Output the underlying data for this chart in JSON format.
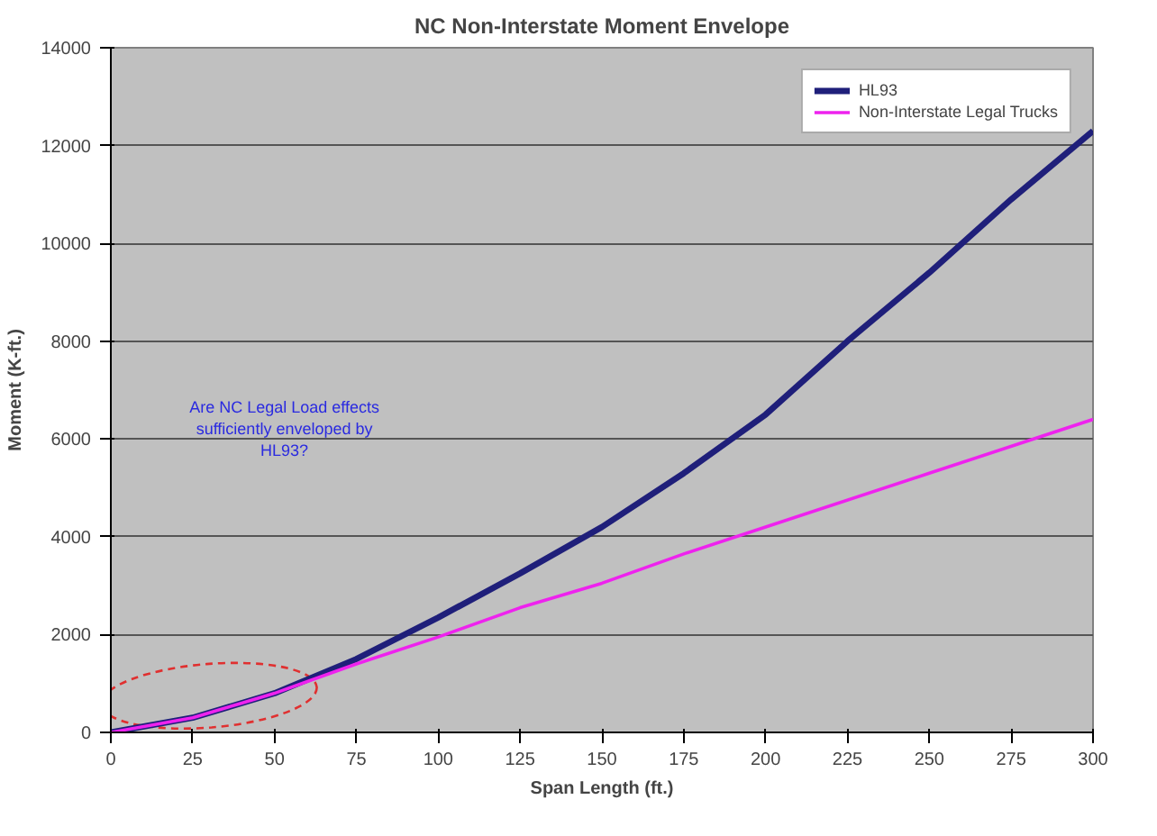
{
  "chart_data": {
    "type": "line",
    "title": "NC Non-Interstate Moment Envelope",
    "xlabel": "Span Length (ft.)",
    "ylabel": "Moment (K-ft.)",
    "xlim": [
      0,
      300
    ],
    "ylim": [
      0,
      14000
    ],
    "xticks": [
      0,
      25,
      50,
      75,
      100,
      125,
      150,
      175,
      200,
      225,
      250,
      275,
      300
    ],
    "yticks": [
      0,
      2000,
      4000,
      6000,
      8000,
      10000,
      12000,
      14000
    ],
    "grid": "y",
    "legend": "top right",
    "marker": "none",
    "line_style": "solid",
    "annotations": [
      "Are NC Legal Load effects sufficiently enveloped by HL93?"
    ],
    "series": [
      {
        "name": "HL93",
        "color": "#1f1f7a",
        "x": [
          0,
          25,
          50,
          75,
          100,
          125,
          150,
          175,
          200,
          225,
          250,
          275,
          300
        ],
        "values": [
          0,
          300,
          800,
          1500,
          2350,
          3250,
          4200,
          5300,
          6500,
          8000,
          9400,
          10900,
          12300
        ]
      },
      {
        "name": "Non-Interstate Legal Trucks",
        "color": "#ee22ee",
        "x": [
          0,
          25,
          40,
          50,
          75,
          100,
          125,
          150,
          175,
          200,
          250,
          300
        ],
        "values": [
          0,
          300,
          600,
          800,
          1400,
          1950,
          2550,
          3050,
          3650,
          4200,
          5300,
          6400
        ]
      }
    ]
  }
}
